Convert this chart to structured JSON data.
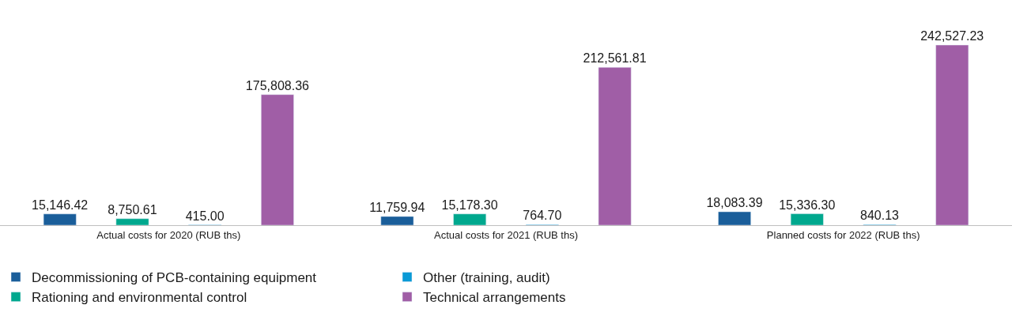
{
  "chart_data": {
    "type": "bar",
    "categories": [
      "Actual costs for 2020 (RUB ths)",
      "Actual costs for 2021 (RUB ths)",
      "Planned costs for 2022 (RUB ths)"
    ],
    "series": [
      {
        "name": "Decommissioning of PCB-containing equipment",
        "color": "#1a5e9a",
        "values": [
          15146.42,
          11759.94,
          18083.39
        ],
        "value_labels": [
          "15,146.42",
          "11,759.94",
          "18,083.39"
        ]
      },
      {
        "name": "Rationing and environmental control",
        "color": "#00a88e",
        "values": [
          8750.61,
          15178.3,
          15336.3
        ],
        "value_labels": [
          "8,750.61",
          "15,178.30",
          "15,336.30"
        ]
      },
      {
        "name": "Other (training, audit)",
        "color": "#0a9ad6",
        "values": [
          415.0,
          764.7,
          840.13
        ],
        "value_labels": [
          "415.00",
          "764.70",
          "840.13"
        ]
      },
      {
        "name": "Technical arrangements",
        "color": "#a05ea6",
        "values": [
          175808.36,
          212561.81,
          242527.23
        ],
        "value_labels": [
          "175,808.36",
          "212,561.81",
          "242,527.23"
        ]
      }
    ],
    "legend": "bottom"
  }
}
